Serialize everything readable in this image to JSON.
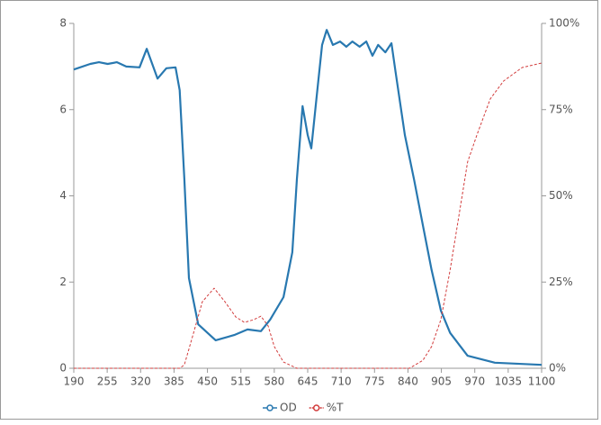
{
  "chart_data": {
    "type": "line",
    "xlim": [
      190,
      1100
    ],
    "xticks": [
      190,
      255,
      320,
      385,
      450,
      515,
      580,
      645,
      710,
      775,
      840,
      905,
      970,
      1035,
      1100
    ],
    "ylim": [
      0,
      8
    ],
    "yticks": [
      0,
      2,
      4,
      6,
      8
    ],
    "y2lim": [
      0,
      100
    ],
    "y2ticks": [
      {
        "value": 0,
        "label": "0%"
      },
      {
        "value": 25,
        "label": "25%"
      },
      {
        "value": 50,
        "label": "50%"
      },
      {
        "value": 75,
        "label": "75%"
      },
      {
        "value": 100,
        "label": "100%"
      }
    ],
    "legend": "bottom",
    "series": [
      {
        "name": "OD",
        "color": "#2878b0",
        "dash": false,
        "x": [
          190,
          222,
          239,
          256,
          274,
          292,
          318,
          332,
          353,
          370,
          388,
          396,
          405,
          414,
          432,
          466,
          502,
          528,
          554,
          572,
          598,
          615,
          624,
          635,
          645,
          652,
          662,
          673,
          682,
          694,
          708,
          720,
          732,
          746,
          759,
          771,
          782,
          796,
          808,
          816,
          834,
          852,
          869,
          886,
          904,
          922,
          956,
          1009,
          1100
        ],
        "values": [
          6.93,
          7.06,
          7.1,
          7.06,
          7.1,
          7.0,
          6.98,
          7.41,
          6.72,
          6.96,
          6.98,
          6.45,
          4.39,
          2.09,
          1.02,
          0.65,
          0.77,
          0.9,
          0.86,
          1.13,
          1.65,
          2.69,
          4.39,
          6.08,
          5.41,
          5.1,
          6.25,
          7.5,
          7.85,
          7.5,
          7.58,
          7.46,
          7.58,
          7.46,
          7.58,
          7.25,
          7.5,
          7.33,
          7.54,
          6.87,
          5.41,
          4.37,
          3.32,
          2.28,
          1.34,
          0.82,
          0.29,
          0.13,
          0.08
        ]
      },
      {
        "name": "%T",
        "color": "#d23c3c",
        "dash": true,
        "axis": "y2",
        "x": [
          190,
          396,
          405,
          423,
          440,
          463,
          484,
          505,
          522,
          540,
          554,
          568,
          580,
          598,
          624,
          843,
          869,
          886,
          904,
          922,
          939,
          956,
          974,
          1000,
          1026,
          1062,
          1100
        ],
        "values": [
          0,
          0,
          1.0,
          10.2,
          19.3,
          23.2,
          19.3,
          14.9,
          13.3,
          14.1,
          15.1,
          12.3,
          6.3,
          1.8,
          0,
          0,
          2.3,
          6.3,
          14.1,
          28.5,
          44.1,
          59.8,
          67.6,
          78.1,
          83.3,
          87.2,
          88.5
        ]
      }
    ]
  }
}
